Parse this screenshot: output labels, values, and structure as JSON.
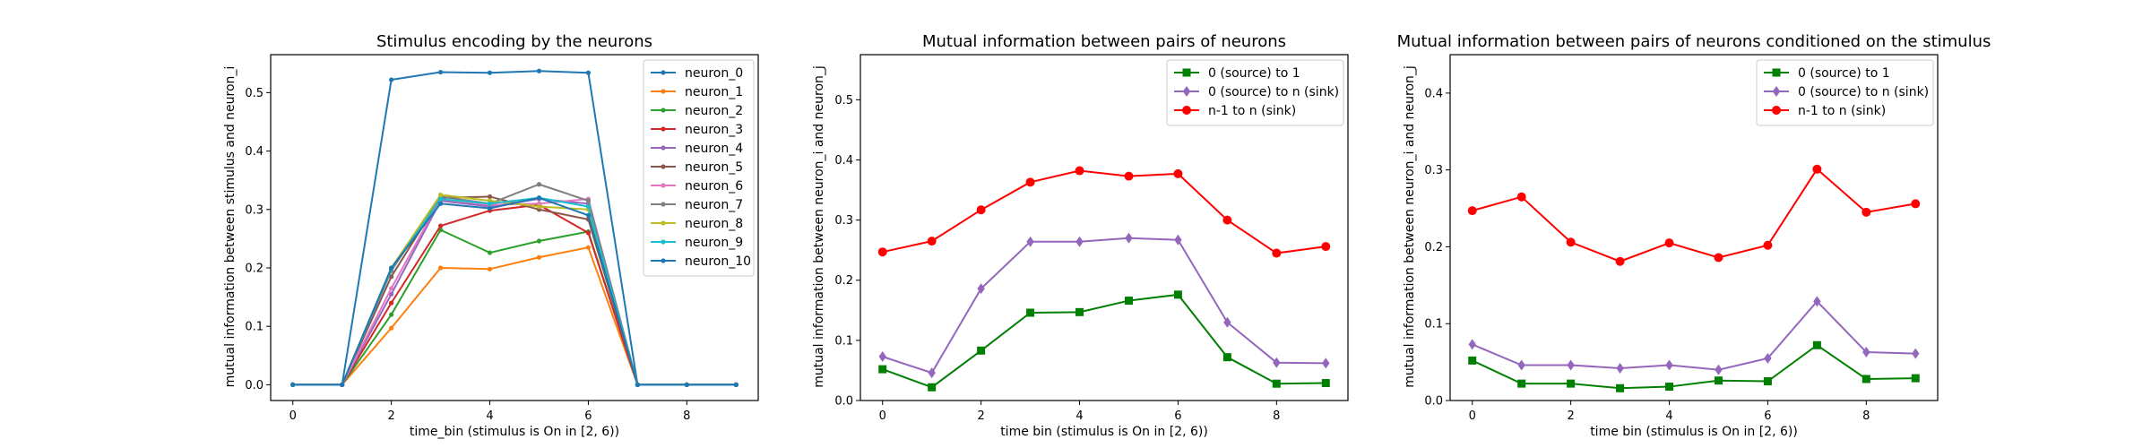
{
  "chart_data": [
    {
      "type": "line",
      "title": "Stimulus encoding by the neurons",
      "xlabel": "time_bin (stimulus is On in [2, 6))",
      "ylabel": "mutual information between stimulus and neuron_i",
      "xlim": [
        -0.45,
        9.45
      ],
      "ylim": [
        -0.027,
        0.565
      ],
      "xticks": [
        0,
        2,
        4,
        6,
        8
      ],
      "yticks": [
        0.0,
        0.1,
        0.2,
        0.3,
        0.4,
        0.5
      ],
      "legend_position": "top-right",
      "x": [
        0,
        1,
        2,
        3,
        4,
        5,
        6,
        7,
        8,
        9
      ],
      "series": [
        {
          "name": "neuron_0",
          "color": "#1f77b4",
          "marker": "dot",
          "values": [
            0,
            0,
            0.522,
            0.535,
            0.534,
            0.537,
            0.534,
            0,
            0,
            0
          ]
        },
        {
          "name": "neuron_1",
          "color": "#ff7f0e",
          "marker": "dot",
          "values": [
            0,
            0,
            0.097,
            0.2,
            0.198,
            0.218,
            0.235,
            0,
            0,
            0
          ]
        },
        {
          "name": "neuron_2",
          "color": "#2ca02c",
          "marker": "dot",
          "values": [
            0,
            0,
            0.12,
            0.265,
            0.226,
            0.246,
            0.262,
            0,
            0,
            0
          ]
        },
        {
          "name": "neuron_3",
          "color": "#d62728",
          "marker": "dot",
          "values": [
            0,
            0,
            0.14,
            0.272,
            0.298,
            0.308,
            0.26,
            0,
            0,
            0
          ]
        },
        {
          "name": "neuron_4",
          "color": "#9467bd",
          "marker": "dot",
          "values": [
            0,
            0,
            0.155,
            0.315,
            0.305,
            0.318,
            0.31,
            0,
            0,
            0
          ]
        },
        {
          "name": "neuron_5",
          "color": "#8c564b",
          "marker": "dot",
          "values": [
            0,
            0,
            0.185,
            0.32,
            0.322,
            0.3,
            0.283,
            0,
            0,
            0
          ]
        },
        {
          "name": "neuron_6",
          "color": "#e377c2",
          "marker": "dot",
          "values": [
            0,
            0,
            0.165,
            0.318,
            0.308,
            0.31,
            0.318,
            0,
            0,
            0
          ]
        },
        {
          "name": "neuron_7",
          "color": "#7f7f7f",
          "marker": "dot",
          "values": [
            0,
            0,
            0.195,
            0.322,
            0.31,
            0.343,
            0.315,
            0,
            0,
            0
          ]
        },
        {
          "name": "neuron_8",
          "color": "#bcbd22",
          "marker": "dot",
          "values": [
            0,
            0,
            0.2,
            0.325,
            0.315,
            0.305,
            0.3,
            0,
            0,
            0
          ]
        },
        {
          "name": "neuron_9",
          "color": "#17becf",
          "marker": "dot",
          "values": [
            0,
            0,
            0.198,
            0.318,
            0.31,
            0.32,
            0.305,
            0,
            0,
            0
          ]
        },
        {
          "name": "neuron_10",
          "color": "#1f77b4",
          "marker": "dot",
          "values": [
            0,
            0,
            0.2,
            0.31,
            0.302,
            0.32,
            0.29,
            0,
            0,
            0
          ]
        }
      ]
    },
    {
      "type": "line",
      "title": "Mutual information between pairs of neurons",
      "xlabel": "time bin (stimulus is On in [2, 6))",
      "ylabel": "mutual information between neuron_i and neuron_j",
      "xlim": [
        -0.45,
        9.45
      ],
      "ylim": [
        0,
        0.575
      ],
      "xticks": [
        0,
        2,
        4,
        6,
        8
      ],
      "yticks": [
        0.0,
        0.1,
        0.2,
        0.3,
        0.4,
        0.5
      ],
      "legend_position": "top-right",
      "x": [
        0,
        1,
        2,
        3,
        4,
        5,
        6,
        7,
        8,
        9
      ],
      "series": [
        {
          "name": "0 (source) to 1",
          "color": "#008000",
          "marker": "square",
          "values": [
            0.052,
            0.022,
            0.083,
            0.146,
            0.147,
            0.166,
            0.176,
            0.072,
            0.028,
            0.029
          ]
        },
        {
          "name": "0 (source) to n (sink)",
          "color": "#9467bd",
          "marker": "diamond",
          "values": [
            0.073,
            0.046,
            0.186,
            0.264,
            0.264,
            0.27,
            0.267,
            0.13,
            0.063,
            0.062
          ]
        },
        {
          "name": "n-1 to n (sink)",
          "color": "#ff0000",
          "marker": "circle",
          "values": [
            0.247,
            0.265,
            0.317,
            0.363,
            0.382,
            0.373,
            0.377,
            0.3,
            0.245,
            0.256
          ]
        }
      ]
    },
    {
      "type": "line",
      "title": "Mutual information between pairs of neurons conditioned on the stimulus",
      "xlabel": "time bin (stimulus is On in [2, 6))",
      "ylabel": "mutual information between neuron_i and neuron_j",
      "xlim": [
        -0.45,
        9.45
      ],
      "ylim": [
        0,
        0.45
      ],
      "xticks": [
        0,
        2,
        4,
        6,
        8
      ],
      "yticks": [
        0.0,
        0.1,
        0.2,
        0.3,
        0.4
      ],
      "legend_position": "top-right",
      "x": [
        0,
        1,
        2,
        3,
        4,
        5,
        6,
        7,
        8,
        9
      ],
      "series": [
        {
          "name": "0 (source) to 1",
          "color": "#008000",
          "marker": "square",
          "values": [
            0.052,
            0.022,
            0.022,
            0.016,
            0.018,
            0.026,
            0.025,
            0.072,
            0.028,
            0.029
          ]
        },
        {
          "name": "0 (source) to n (sink)",
          "color": "#9467bd",
          "marker": "diamond",
          "values": [
            0.073,
            0.046,
            0.046,
            0.042,
            0.046,
            0.04,
            0.055,
            0.129,
            0.063,
            0.061
          ]
        },
        {
          "name": "n-1 to n (sink)",
          "color": "#ff0000",
          "marker": "circle",
          "values": [
            0.247,
            0.265,
            0.206,
            0.181,
            0.205,
            0.186,
            0.202,
            0.301,
            0.245,
            0.256
          ]
        }
      ]
    }
  ]
}
